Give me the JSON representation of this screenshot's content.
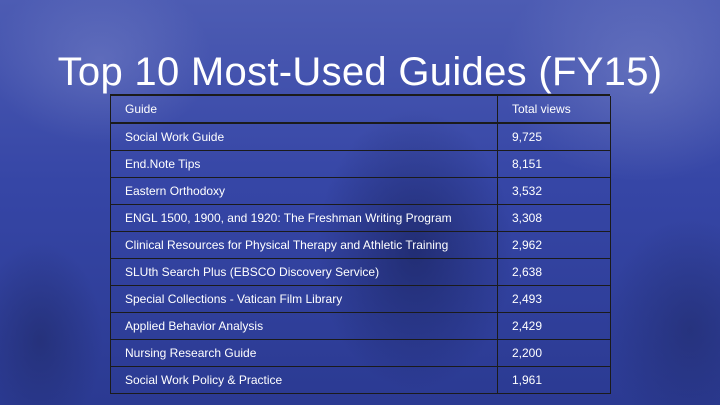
{
  "slide": {
    "title": "Top 10 Most-Used Guides (FY15)"
  },
  "table": {
    "headers": [
      "Guide",
      "Total views"
    ],
    "rows": [
      {
        "guide": "Social Work Guide",
        "views": "9,725"
      },
      {
        "guide": "End.Note Tips",
        "views": "8,151"
      },
      {
        "guide": "Eastern Orthodoxy",
        "views": "3,532"
      },
      {
        "guide": "ENGL 1500, 1900, and 1920: The Freshman Writing Program",
        "views": "3,308"
      },
      {
        "guide": "Clinical Resources for Physical Therapy and Athletic Training",
        "views": "2,962"
      },
      {
        "guide": "SLUth Search Plus (EBSCO Discovery Service)",
        "views": "2,638"
      },
      {
        "guide": "Special Collections - Vatican Film Library",
        "views": "2,493"
      },
      {
        "guide": "Applied Behavior Analysis",
        "views": "2,429"
      },
      {
        "guide": "Nursing Research Guide",
        "views": "2,200"
      },
      {
        "guide": "Social Work Policy & Practice",
        "views": "1,961"
      }
    ]
  },
  "colors": {
    "background": "#3646a6",
    "text": "#ffffff",
    "rule": "#1b1b1b"
  }
}
